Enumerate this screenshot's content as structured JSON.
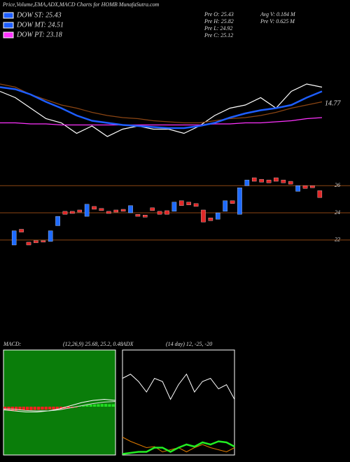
{
  "header": {
    "title": "Price,Volume,EMA,ADX,MACD Charts for HOMB MunafaSutra.com"
  },
  "legend": [
    "DOW ST: 25.43",
    "DOW MT: 24.51",
    "DOW PT: 23.18"
  ],
  "stats": [
    "Pre O: 25.43",
    "Pre H: 25.82",
    "Pre L: 24.92",
    "Pre C: 25.12",
    "Avg V: 0.184 M",
    "Pre V: 0.625 M"
  ],
  "chart_data": [
    {
      "type": "line",
      "annotation": "14.77",
      "ylim": [
        0,
        100
      ],
      "series": [
        {
          "color": "#ffffff",
          "values": [
            53,
            47,
            37,
            27,
            23,
            13,
            20,
            10,
            17,
            20,
            17,
            17,
            13,
            20,
            30,
            37,
            40,
            47,
            37,
            53,
            60,
            57
          ]
        },
        {
          "color": "#8b4513",
          "values": [
            60,
            57,
            50,
            45,
            40,
            37,
            33,
            30,
            28,
            27,
            25,
            24,
            23,
            23,
            25,
            27,
            28,
            30,
            33,
            37,
            40,
            43
          ]
        },
        {
          "color": "#ff33ff",
          "values": [
            23,
            23,
            22,
            22,
            21,
            21,
            21,
            21,
            21,
            21,
            21,
            21,
            21,
            21,
            22,
            22,
            23,
            23,
            24,
            25,
            27,
            28
          ]
        },
        {
          "color": "#1e5eff",
          "values": [
            57,
            55,
            50,
            43,
            37,
            30,
            25,
            23,
            21,
            20,
            19,
            18,
            18,
            20,
            23,
            28,
            32,
            35,
            37,
            40,
            47,
            53
          ]
        }
      ]
    },
    {
      "type": "candlestick",
      "ylim": [
        20.6,
        27.3
      ],
      "yticks": [
        22,
        24,
        26
      ],
      "up_color": "#1e6bff",
      "down_color": "#e02828",
      "grid_color": "#8b4513",
      "open": [
        21.63,
        22.79,
        21.84,
        21.95,
        21.95,
        21.89,
        23.05,
        24.11,
        24.11,
        24.21,
        23.74,
        24.47,
        24.32,
        24.11,
        24.21,
        24.26,
        24.0,
        23.89,
        23.84,
        24.37,
        24.11,
        24.16,
        24.11,
        24.89,
        24.79,
        24.68,
        24.21,
        23.63,
        23.53,
        24.11,
        24.89,
        23.89,
        26.0,
        26.58,
        26.47,
        26.42,
        26.58,
        26.42,
        26.32,
        25.58,
        26.0,
        26.0,
        25.63
      ],
      "close": [
        22.68,
        22.58,
        21.63,
        21.79,
        21.84,
        22.68,
        23.74,
        23.89,
        23.95,
        24.05,
        24.63,
        24.26,
        24.16,
        23.95,
        24.05,
        24.11,
        24.53,
        23.74,
        23.68,
        24.16,
        23.89,
        23.89,
        24.79,
        24.53,
        24.58,
        24.47,
        23.32,
        23.42,
        24.0,
        24.89,
        24.68,
        25.84,
        26.42,
        26.32,
        26.26,
        26.21,
        26.32,
        26.21,
        26.11,
        26.0,
        25.79,
        25.84,
        25.12
      ]
    },
    {
      "type": "macd",
      "title": "MACD:",
      "params": "(12,26,9) 25.68, 25.2, 0.48",
      "background": "#0a7d0a",
      "ylim": [
        -2.3,
        2.7
      ],
      "pos_color": "#22dd22",
      "neg_color": "#ff2020",
      "histogram": [
        -0.15,
        -0.17,
        -0.18,
        -0.18,
        -0.17,
        -0.17,
        -0.16,
        -0.16,
        -0.15,
        -0.15,
        -0.14,
        -0.14,
        -0.13,
        -0.13,
        -0.12,
        -0.12,
        -0.1,
        -0.08,
        -0.06,
        -0.04,
        0.03,
        0.06,
        0.08,
        0.1,
        0.11,
        0.12,
        0.13,
        0.13,
        0.12,
        0.12
      ],
      "series": [
        {
          "color": "#ffffff",
          "values": [
            -0.15,
            -0.2,
            -0.25,
            -0.25,
            -0.2,
            -0.1,
            0.05,
            0.2,
            0.3,
            0.35,
            0.3
          ]
        },
        {
          "color": "#dddddd",
          "values": [
            -0.1,
            -0.12,
            -0.18,
            -0.2,
            -0.2,
            -0.15,
            -0.05,
            0.05,
            0.15,
            0.22,
            0.25
          ]
        }
      ]
    },
    {
      "type": "adx",
      "title": "ADX",
      "params": "(14 day) 12, -25, -20",
      "ylim": [
        0,
        100
      ],
      "series": [
        {
          "color": "#ffffff",
          "values": [
            73,
            77,
            70,
            60,
            73,
            70,
            53,
            67,
            77,
            60,
            70,
            73,
            63,
            67,
            53
          ]
        },
        {
          "color": "#e07b00",
          "values": [
            17,
            13,
            10,
            7,
            8,
            3,
            5,
            7,
            3,
            7,
            10,
            7,
            5,
            3,
            7
          ]
        },
        {
          "color": "#22ee22",
          "values": [
            1,
            2,
            3,
            3,
            7,
            7,
            3,
            7,
            10,
            8,
            12,
            10,
            13,
            12,
            8
          ]
        }
      ]
    }
  ]
}
